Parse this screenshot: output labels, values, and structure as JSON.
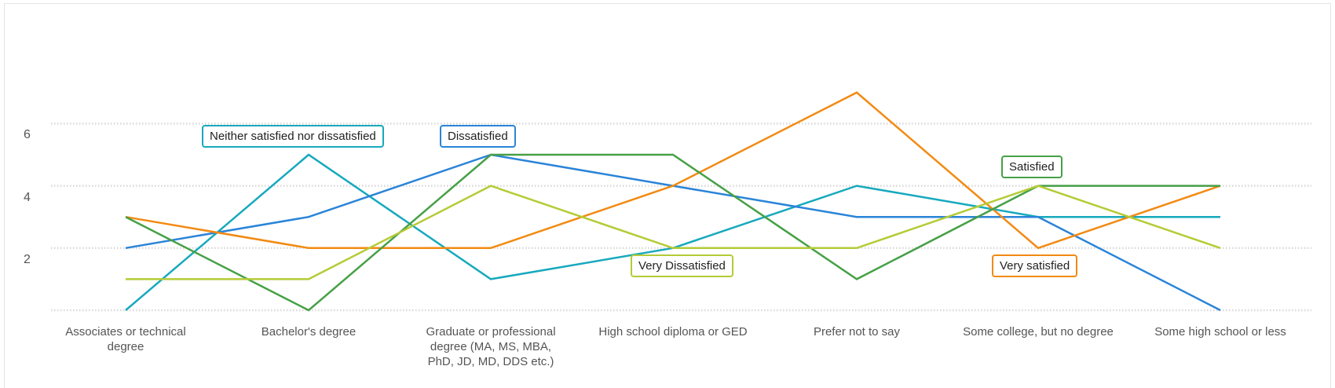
{
  "chart_data": {
    "type": "line",
    "title": "",
    "xlabel": "",
    "ylabel": "",
    "ylim": [
      0,
      7.5
    ],
    "yticks": [
      2,
      4,
      6
    ],
    "grid": true,
    "gridlines": [
      0,
      2,
      4,
      6
    ],
    "legend": "inline labels",
    "categories": [
      "Associates or technical degree",
      "Bachelor's degree",
      "Graduate or professional degree (MA, MS, MBA, PhD, JD, MD, DDS etc.)",
      "High school diploma or GED",
      "Prefer not to say",
      "Some college, but no degree",
      "Some high school or less"
    ],
    "series": [
      {
        "name": "Neither satisfied nor dissatisfied",
        "color": "#17a9bd",
        "values": [
          0,
          5,
          1,
          2,
          4,
          3,
          3
        ]
      },
      {
        "name": "Dissatisfied",
        "color": "#2a84d8",
        "values": [
          2,
          3,
          5,
          4,
          3,
          3,
          0
        ]
      },
      {
        "name": "Very satisfied",
        "color": "#f28a12",
        "values": [
          3,
          2,
          2,
          4,
          7,
          2,
          4
        ]
      },
      {
        "name": "Satisfied",
        "color": "#46a046",
        "values": [
          3,
          0,
          5,
          5,
          1,
          4,
          4
        ]
      },
      {
        "name": "Very Dissatisfied",
        "color": "#b5cb36",
        "values": [
          1,
          1,
          4,
          2,
          2,
          4,
          2
        ]
      }
    ]
  }
}
